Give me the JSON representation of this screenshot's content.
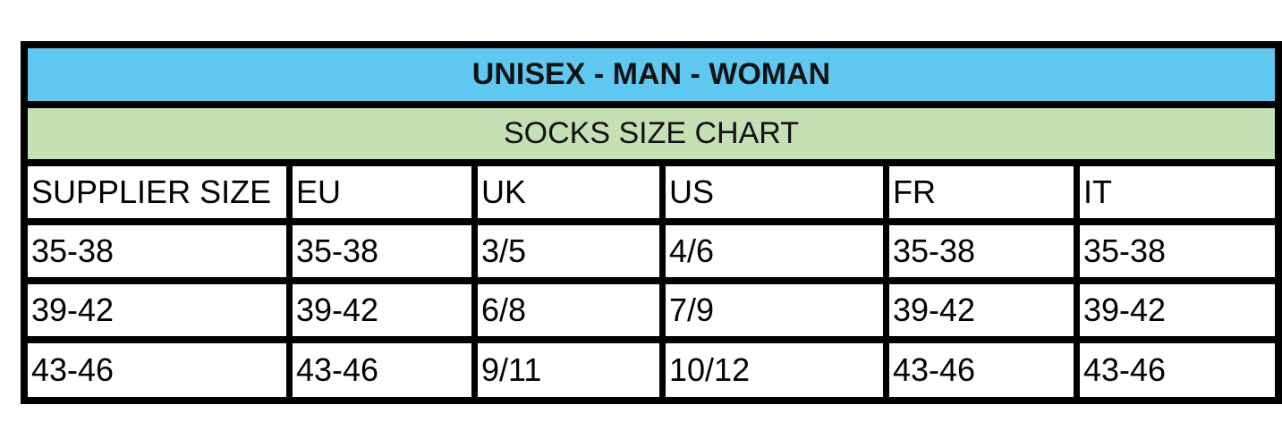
{
  "title": "UNISEX - MAN - WOMAN",
  "subtitle": "SOCKS SIZE CHART",
  "colors": {
    "title_bg": "#5fc8f1",
    "subtitle_bg": "#c5e0b3",
    "border": "#000000"
  },
  "headers": [
    "SUPPLIER SIZE",
    "EU",
    "UK",
    "US",
    "FR",
    "IT"
  ],
  "rows": [
    [
      "35-38",
      "35-38",
      "3/5",
      "4/6",
      "35-38",
      "35-38"
    ],
    [
      "39-42",
      "39-42",
      "6/8",
      "7/9",
      "39-42",
      "39-42"
    ],
    [
      "43-46",
      "43-46",
      "9/11",
      "10/12",
      "43-46",
      "43-46"
    ]
  ]
}
